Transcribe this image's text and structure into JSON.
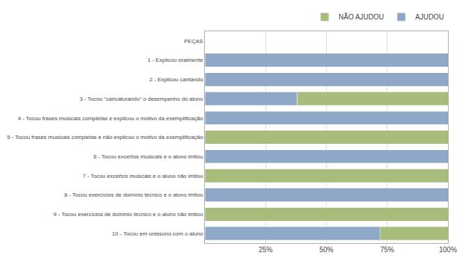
{
  "chart_data": {
    "type": "bar",
    "orientation": "horizontal",
    "stacked": true,
    "categories": [
      "PEÇAS",
      "1 - Explicou oralmente",
      "2 - Explicou cantando",
      "3 - Tocou \"caricaturando\" o desempenho do aluno",
      "4 - Tocou frases musicais completas e explicou o motivo da exemplificação",
      "5 - Tocou frases musicais completas e não explicou o motivo da exemplificação",
      "6 - Tocou excertos musicais e o aluno imitou",
      "7 - Tocou excertos musicais e o aluno não imitou",
      "8 - Tocou exercícios de domínio técnico e o aluno imitou",
      "9 - Tocou exercícios de domínio técnico e o aluno não imitou",
      "10 - Tocou em unissono com o aluno"
    ],
    "series": [
      {
        "name": "AJUDOU",
        "color": "#8fa8c8",
        "values": [
          0,
          100,
          100,
          38,
          100,
          0,
          100,
          0,
          100,
          0,
          72
        ]
      },
      {
        "name": "NÃO AJUDOU",
        "color": "#a8bc7b",
        "values": [
          0,
          0,
          0,
          62,
          0,
          100,
          0,
          100,
          0,
          100,
          28
        ]
      }
    ],
    "xlim": [
      0,
      100
    ],
    "xticks": [
      {
        "value": 25,
        "label": "25%"
      },
      {
        "value": 50,
        "label": "50%"
      },
      {
        "value": 75,
        "label": "75%"
      },
      {
        "value": 100,
        "label": "100%"
      }
    ],
    "grid": true,
    "legend": "top"
  }
}
